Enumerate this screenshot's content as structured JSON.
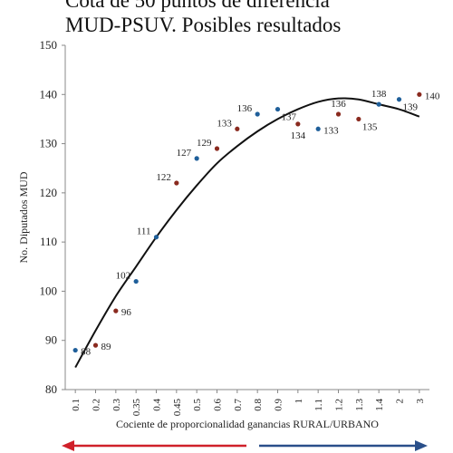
{
  "chart_data": {
    "type": "scatter",
    "title_lines": [
      "Cota de 50 puntos de diferencia",
      "MUD-PSUV. Posibles resultados"
    ],
    "xlabel": "Cociente de proporcionalidad ganancias RURAL/URBANO",
    "ylabel": "No. Diputados MUD",
    "categories": [
      "0.1",
      "0.2",
      "0.3",
      "0.35",
      "0.4",
      "0.45",
      "0.5",
      "0.6",
      "0.7",
      "0.8",
      "0.9",
      "1",
      "1.1",
      "1.2",
      "1.3",
      "1.4",
      "2",
      "3"
    ],
    "ylim": [
      80,
      150
    ],
    "yticks": [
      80,
      90,
      100,
      110,
      120,
      130,
      140,
      150
    ],
    "grid": false,
    "series": [
      {
        "values": [
          88,
          89,
          96,
          102,
          111,
          122,
          127,
          129,
          133,
          136,
          137,
          134,
          133,
          136,
          135,
          138,
          139,
          140
        ],
        "labels": [
          "88",
          "89",
          "96",
          "102",
          "111",
          "122",
          "127",
          "129",
          "133",
          "136",
          "137",
          "134",
          "133",
          "136",
          "135",
          "138",
          "139",
          "140"
        ],
        "colors": [
          "#1f5f9a",
          "#8a2a1f",
          "#8a2a1f",
          "#1f5f9a",
          "#1f5f9a",
          "#8a2a1f",
          "#1f5f9a",
          "#8a2a1f",
          "#8a2a1f",
          "#1f5f9a",
          "#1f5f9a",
          "#8a2a1f",
          "#1f5f9a",
          "#8a2a1f",
          "#8a2a1f",
          "#1f5f9a",
          "#1f5f9a",
          "#8a2a1f"
        ]
      }
    ],
    "trendline": {
      "type": "polynomial",
      "values": [
        84.5,
        92,
        99,
        105,
        111,
        116.5,
        121.5,
        126,
        129.5,
        132.5,
        135,
        137,
        138.5,
        139.2,
        139,
        138,
        137,
        135.5
      ]
    },
    "arrows": [
      {
        "direction": "left",
        "color": "#d0202a"
      },
      {
        "direction": "right",
        "color": "#2a4f8a"
      }
    ]
  }
}
